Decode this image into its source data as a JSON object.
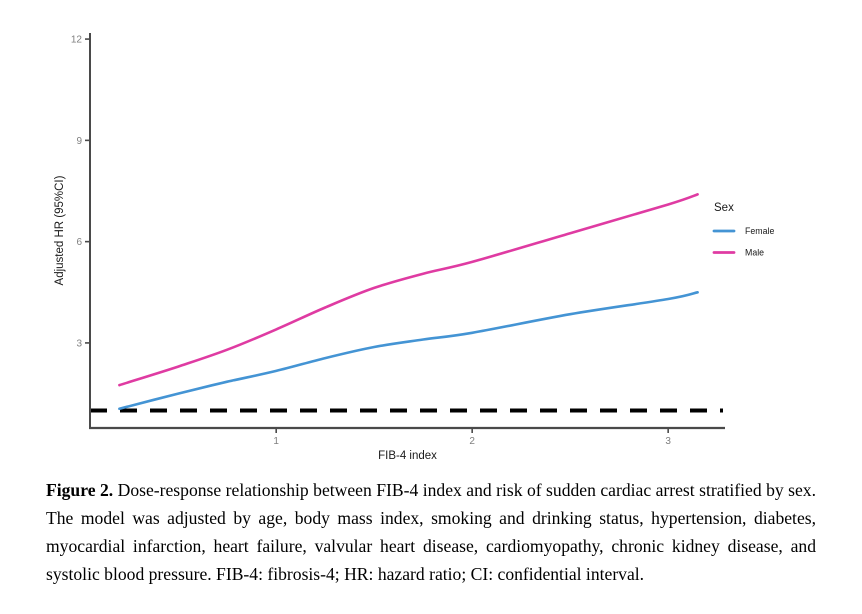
{
  "page": {
    "background": "#ffffff"
  },
  "chart_data": {
    "type": "line",
    "title": "",
    "xlabel": "FIB-4 index",
    "ylabel": "Adjusted HR (95%CI)",
    "xlim": [
      0.05,
      3.29
    ],
    "ylim": [
      0.48,
      12.18
    ],
    "xtick_values": [
      1,
      2,
      3
    ],
    "xtick_labels": [
      "1",
      "2",
      "3"
    ],
    "ytick_values": [
      3,
      6,
      9,
      12
    ],
    "ytick_labels": [
      "3",
      "6",
      "9",
      "12"
    ],
    "grid": false,
    "legend": {
      "title": "Sex",
      "position": "right"
    },
    "reference_line": {
      "y": 1,
      "style": "dashed",
      "color": "#000000"
    },
    "series": [
      {
        "name": "Female",
        "color": "#4494D4",
        "x": [
          0.2,
          0.5,
          0.75,
          1.0,
          1.25,
          1.5,
          1.75,
          2.0,
          2.5,
          3.0,
          3.15
        ],
        "y": [
          1.05,
          1.5,
          1.85,
          2.17,
          2.55,
          2.88,
          3.1,
          3.3,
          3.85,
          4.3,
          4.5
        ]
      },
      {
        "name": "Male",
        "color": "#DF3BA2",
        "x": [
          0.2,
          0.5,
          0.75,
          1.0,
          1.25,
          1.5,
          1.75,
          2.0,
          2.5,
          3.0,
          3.15
        ],
        "y": [
          1.75,
          2.3,
          2.8,
          3.4,
          4.05,
          4.63,
          5.05,
          5.4,
          6.25,
          7.1,
          7.4
        ]
      }
    ],
    "axis_color": "#4a4a4a",
    "tick_label_color": "#7f7f7f",
    "label_color": "#1a1a1a"
  },
  "figure": {
    "caption_label": "Figure 2.",
    "caption_text": "Dose-response relationship between FIB-4 index and risk of sudden cardiac arrest stratified by sex. The model was adjusted by age, body mass index, smoking and drinking status, hypertension, diabetes, myocardial infarction, heart failure, valvular heart disease, cardiomyopathy, chronic kidney disease, and systolic blood pressure. FIB-4: fibrosis-4; HR: hazard ratio; CI: confidential interval."
  }
}
